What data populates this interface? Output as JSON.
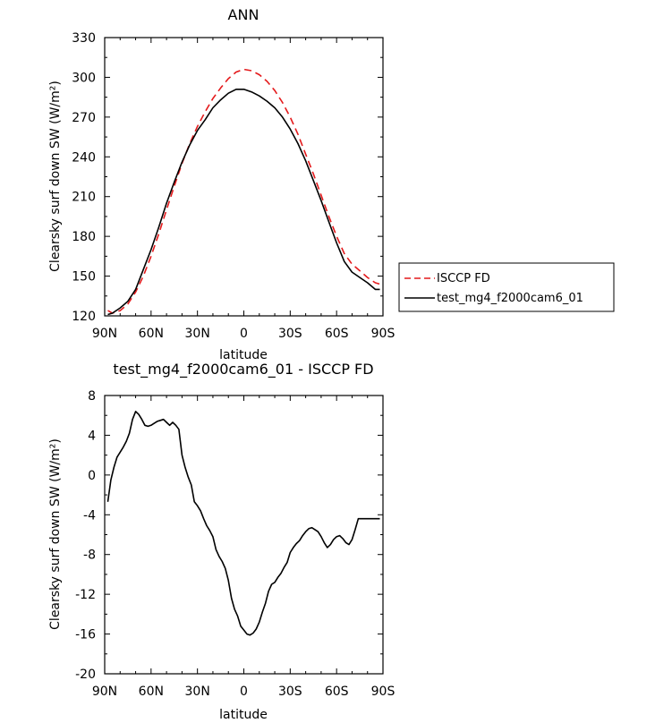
{
  "chart_data": [
    {
      "type": "line",
      "title": "ANN",
      "xlabel": "latitude",
      "ylabel": "Clearsky surf down SW (W/m²)",
      "xlim": [
        90,
        -90
      ],
      "ylim": [
        120,
        330
      ],
      "x_ticks": [
        90,
        60,
        30,
        0,
        -30,
        -60,
        -90
      ],
      "x_tick_labels": [
        "90N",
        "60N",
        "30N",
        "0",
        "30S",
        "60S",
        "90S"
      ],
      "y_ticks": [
        120,
        150,
        180,
        210,
        240,
        270,
        300,
        330
      ],
      "y_tick_labels": [
        "120",
        "150",
        "180",
        "210",
        "240",
        "270",
        "300",
        "330"
      ],
      "legend_position": "right",
      "x": [
        88,
        85,
        80,
        75,
        70,
        65,
        60,
        55,
        50,
        45,
        40,
        35,
        30,
        25,
        20,
        15,
        10,
        5,
        0,
        -5,
        -10,
        -15,
        -20,
        -25,
        -30,
        -35,
        -40,
        -45,
        -50,
        -55,
        -60,
        -65,
        -70,
        -75,
        -80,
        -85,
        -88
      ],
      "series": [
        {
          "name": "ISCCP FD",
          "color": "#e41a1c",
          "dash": "dashed",
          "values": [
            124,
            122,
            124,
            129,
            138,
            150,
            165,
            182,
            200,
            218,
            235,
            250,
            263,
            274,
            284,
            292,
            299,
            304,
            306,
            305,
            302,
            297,
            290,
            281,
            270,
            257,
            242,
            227,
            211,
            195,
            180,
            167,
            159,
            154,
            149,
            145,
            144
          ]
        },
        {
          "name": "test_mg4_f2000cam6_01",
          "color": "#000000",
          "dash": "solid",
          "values": [
            121,
            122,
            126,
            131,
            140,
            155,
            170,
            187,
            205,
            221,
            236,
            249,
            260,
            268,
            277,
            283,
            288,
            291,
            291,
            289,
            286,
            282,
            277,
            270,
            261,
            250,
            237,
            222,
            207,
            191,
            175,
            161,
            153,
            149,
            145,
            140,
            140
          ]
        }
      ]
    },
    {
      "type": "line",
      "title": "test_mg4_f2000cam6_01 - ISCCP FD",
      "xlabel": "latitude",
      "ylabel": "Clearsky surf down SW (W/m²)",
      "xlim": [
        90,
        -90
      ],
      "ylim": [
        -20,
        8
      ],
      "x_ticks": [
        90,
        60,
        30,
        0,
        -30,
        -60,
        -90
      ],
      "x_tick_labels": [
        "90N",
        "60N",
        "30N",
        "0",
        "30S",
        "60S",
        "90S"
      ],
      "y_ticks": [
        -20,
        -16,
        -12,
        -8,
        -4,
        0,
        4,
        8
      ],
      "y_tick_labels": [
        "-20",
        "-16",
        "-12",
        "-8",
        "-4",
        "0",
        "4",
        "8"
      ],
      "x": [
        88,
        86,
        84,
        82,
        80,
        78,
        76,
        74,
        72,
        70,
        68,
        66,
        64,
        62,
        60,
        58,
        56,
        54,
        52,
        50,
        48,
        46,
        44,
        42,
        40,
        38,
        36,
        34,
        32,
        30,
        28,
        26,
        24,
        22,
        20,
        18,
        16,
        14,
        12,
        10,
        8,
        6,
        4,
        2,
        0,
        -2,
        -4,
        -6,
        -8,
        -10,
        -12,
        -14,
        -16,
        -18,
        -20,
        -22,
        -24,
        -26,
        -28,
        -30,
        -32,
        -34,
        -36,
        -38,
        -40,
        -42,
        -44,
        -46,
        -48,
        -50,
        -52,
        -54,
        -56,
        -58,
        -60,
        -62,
        -64,
        -66,
        -68,
        -70,
        -72,
        -74,
        -76,
        -78,
        -80,
        -82,
        -84,
        -86,
        -88
      ],
      "series": [
        {
          "name": "",
          "color": "#000000",
          "dash": "solid",
          "values": [
            -2.7,
            -0.5,
            0.8,
            1.8,
            2.3,
            2.8,
            3.4,
            4.2,
            5.6,
            6.4,
            6.1,
            5.6,
            5.0,
            4.9,
            5.0,
            5.2,
            5.4,
            5.5,
            5.6,
            5.3,
            5.0,
            5.3,
            5.0,
            4.6,
            2.0,
            0.8,
            -0.2,
            -1.0,
            -2.7,
            -3.1,
            -3.6,
            -4.4,
            -5.1,
            -5.6,
            -6.2,
            -7.5,
            -8.2,
            -8.7,
            -9.4,
            -10.6,
            -12.4,
            -13.5,
            -14.2,
            -15.2,
            -15.6,
            -16.0,
            -16.1,
            -15.9,
            -15.5,
            -14.8,
            -13.8,
            -12.9,
            -11.7,
            -11.0,
            -10.8,
            -10.3,
            -9.9,
            -9.3,
            -8.8,
            -7.8,
            -7.3,
            -6.9,
            -6.6,
            -6.1,
            -5.7,
            -5.4,
            -5.3,
            -5.5,
            -5.7,
            -6.2,
            -6.8,
            -7.3,
            -7.0,
            -6.5,
            -6.2,
            -6.1,
            -6.4,
            -6.8,
            -7.0,
            -6.5,
            -5.5,
            -4.4,
            -4.4,
            -4.4,
            -4.4,
            -4.4,
            -4.4,
            -4.4,
            -4.4
          ]
        }
      ]
    }
  ]
}
